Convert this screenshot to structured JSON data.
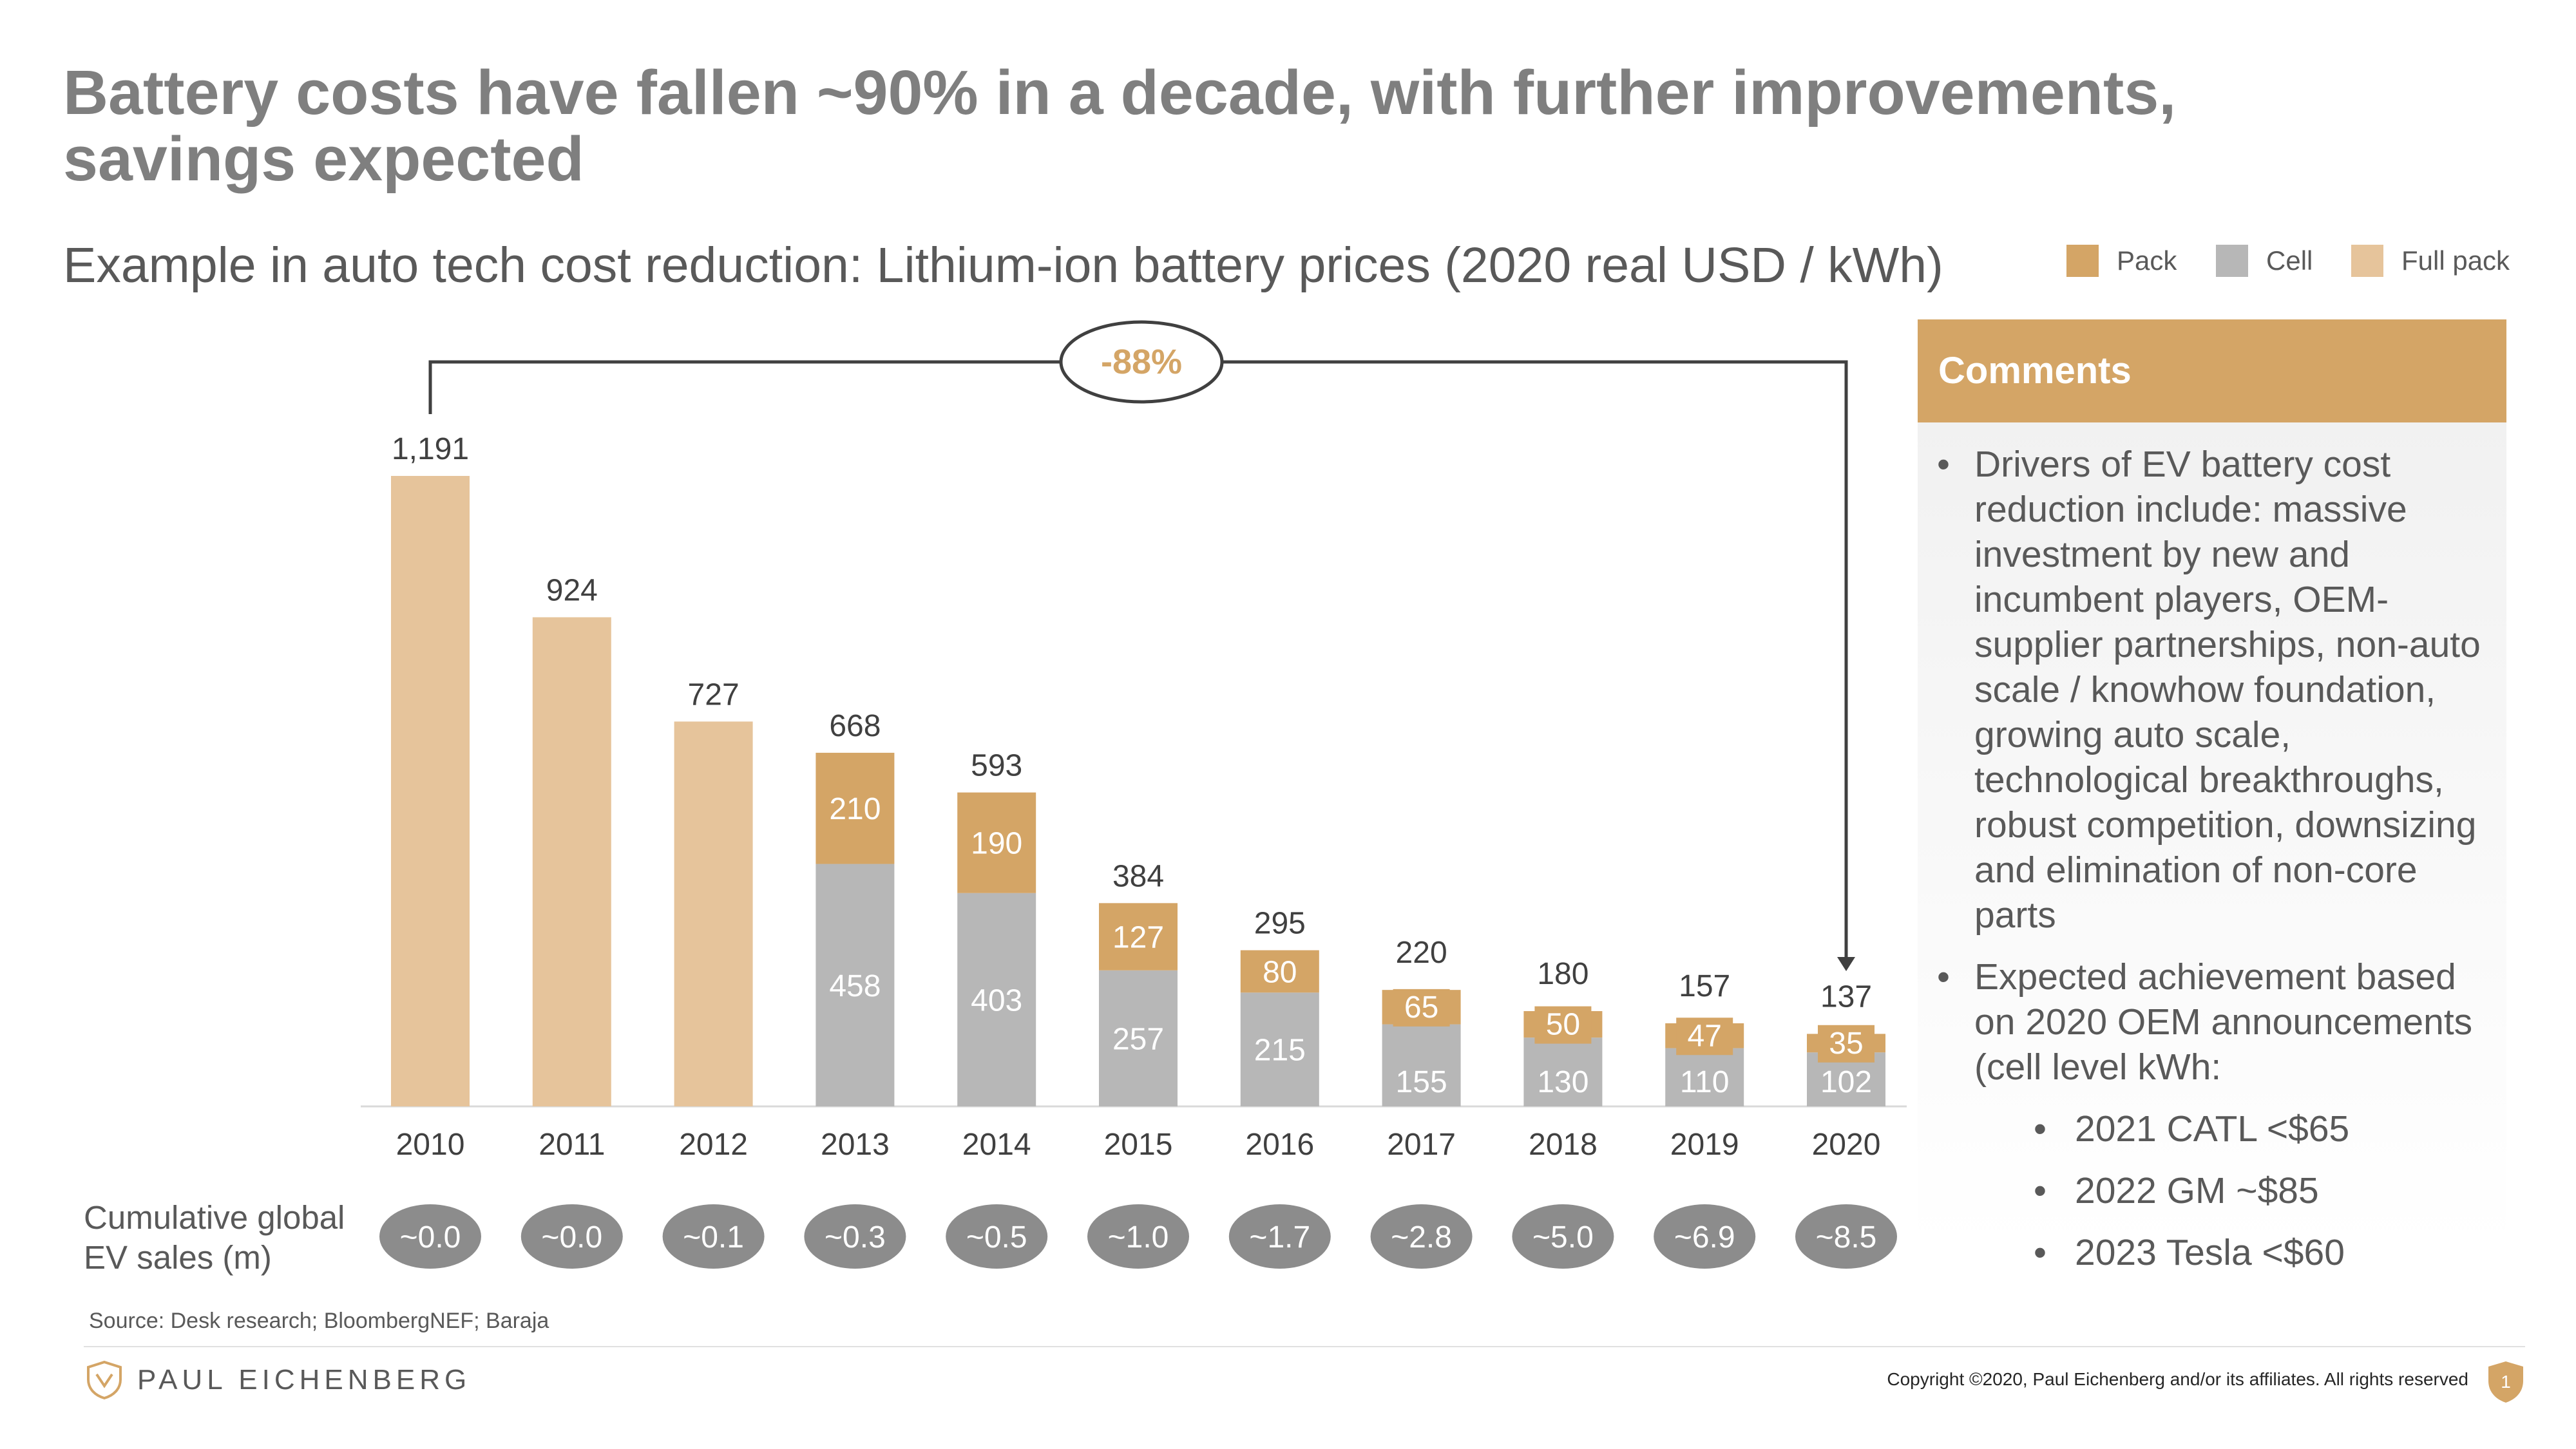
{
  "title": "Battery costs have fallen ~90% in a decade, with further improvements, savings expected",
  "subtitle": "Example in auto tech cost reduction: Lithium-ion battery prices (2020 real USD / kWh)",
  "legend": [
    {
      "label": "Pack",
      "color": "#d4a566"
    },
    {
      "label": "Cell",
      "color": "#b7b7b7"
    },
    {
      "label": "Full pack",
      "color": "#e6c49b"
    }
  ],
  "colors": {
    "pack": "#d4a566",
    "cell": "#b7b7b7",
    "full_pack": "#e6c49b",
    "accent": "#d4a566",
    "ev_pill": "#8c8c8c"
  },
  "chart_data": {
    "type": "bar",
    "stacked": true,
    "title": "Lithium-ion battery prices (2020 real USD / kWh)",
    "categories": [
      "2010",
      "2011",
      "2012",
      "2013",
      "2014",
      "2015",
      "2016",
      "2017",
      "2018",
      "2019",
      "2020"
    ],
    "totals": [
      1191,
      924,
      727,
      668,
      593,
      384,
      295,
      220,
      180,
      157,
      137
    ],
    "total_labels": [
      "1,191",
      "924",
      "727",
      "668",
      "593",
      "384",
      "295",
      "220",
      "180",
      "157",
      "137"
    ],
    "series": [
      {
        "name": "Full pack",
        "values": [
          1191,
          924,
          727,
          null,
          null,
          null,
          null,
          null,
          null,
          null,
          null
        ]
      },
      {
        "name": "Cell",
        "values": [
          null,
          null,
          null,
          458,
          403,
          257,
          215,
          155,
          130,
          110,
          102
        ]
      },
      {
        "name": "Pack",
        "values": [
          null,
          null,
          null,
          210,
          190,
          127,
          80,
          65,
          50,
          47,
          35
        ]
      }
    ],
    "ylim": [
      0,
      1191
    ],
    "annotation": {
      "text": "-88%",
      "from": "2010",
      "to": "2020"
    }
  },
  "ev_sales": {
    "label_line1": "Cumulative global",
    "label_line2": "EV sales (m)",
    "values": [
      "~0.0",
      "~0.0",
      "~0.1",
      "~0.3",
      "~0.5",
      "~1.0",
      "~1.7",
      "~2.8",
      "~5.0",
      "~6.9",
      "~8.5"
    ]
  },
  "comments": {
    "header": "Comments",
    "bullet1": "Drivers of EV battery cost reduction include: massive investment by new and incumbent players, OEM-supplier partnerships, non-auto scale / knowhow foundation, growing auto scale, technological breakthroughs, robust competition, downsizing and elimination of non-core parts",
    "bullet2": "Expected achievement based on 2020 OEM announcements (cell level kWh:",
    "sub_bullets": [
      "2021 CATL <$65",
      "2022 GM ~$85",
      "2023 Tesla <$60"
    ]
  },
  "source": "Source: Desk research; BloombergNEF; Baraja",
  "footer": {
    "brand": "PAUL EICHENBERG",
    "copyright": "Copyright ©2020, Paul Eichenberg and/or its affiliates. All rights reserved",
    "page_number": "1"
  }
}
